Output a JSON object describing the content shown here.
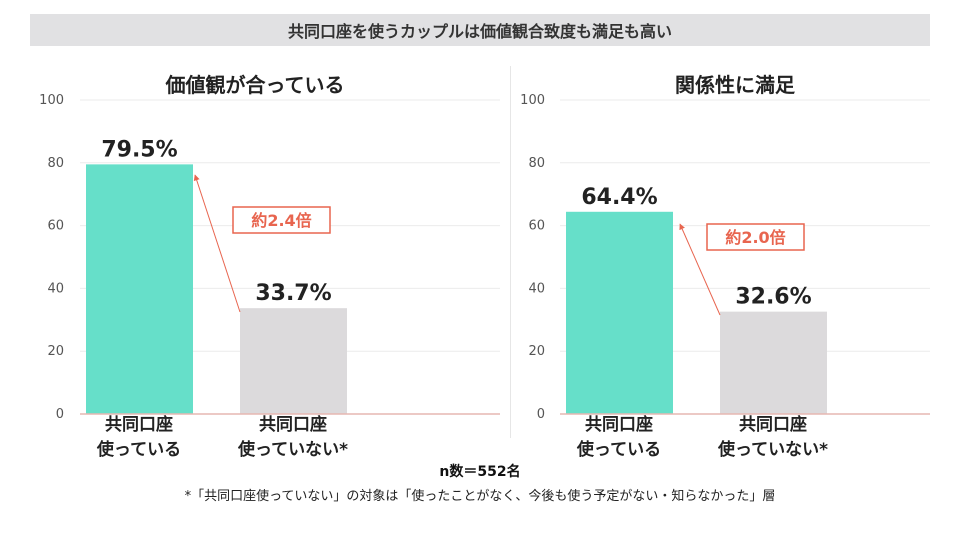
{
  "banner_title": "共同口座を使うカップルは価値観合致度も満足も高い",
  "colors": {
    "bar_primary": "#66dfc9",
    "bar_secondary": "#dcdadc",
    "accent": "#e8654f",
    "grid": "#ebebeb",
    "axis": "#e6b7b2"
  },
  "chart_data": [
    {
      "type": "bar",
      "title": "価値観が合っている",
      "categories": [
        "共同口座\n使っている",
        "共同口座\n使っていない*"
      ],
      "values": [
        79.5,
        33.7
      ],
      "value_labels": [
        "79.5%",
        "33.7%"
      ],
      "ylim": [
        0,
        100
      ],
      "yticks": [
        0,
        20,
        40,
        60,
        80,
        100
      ],
      "annotation": "約2.4倍",
      "grid": true
    },
    {
      "type": "bar",
      "title": "関係性に満足",
      "categories": [
        "共同口座\n使っている",
        "共同口座\n使っていない*"
      ],
      "values": [
        64.4,
        32.6
      ],
      "value_labels": [
        "64.4%",
        "32.6%"
      ],
      "ylim": [
        0,
        100
      ],
      "yticks": [
        0,
        20,
        40,
        60,
        80,
        100
      ],
      "annotation": "約2.0倍",
      "grid": true
    }
  ],
  "footer": {
    "sample_size": "n数＝552名",
    "note": "*「共同口座使っていない」の対象は「使ったことがなく、今後も使う予定がない・知らなかった」層"
  }
}
